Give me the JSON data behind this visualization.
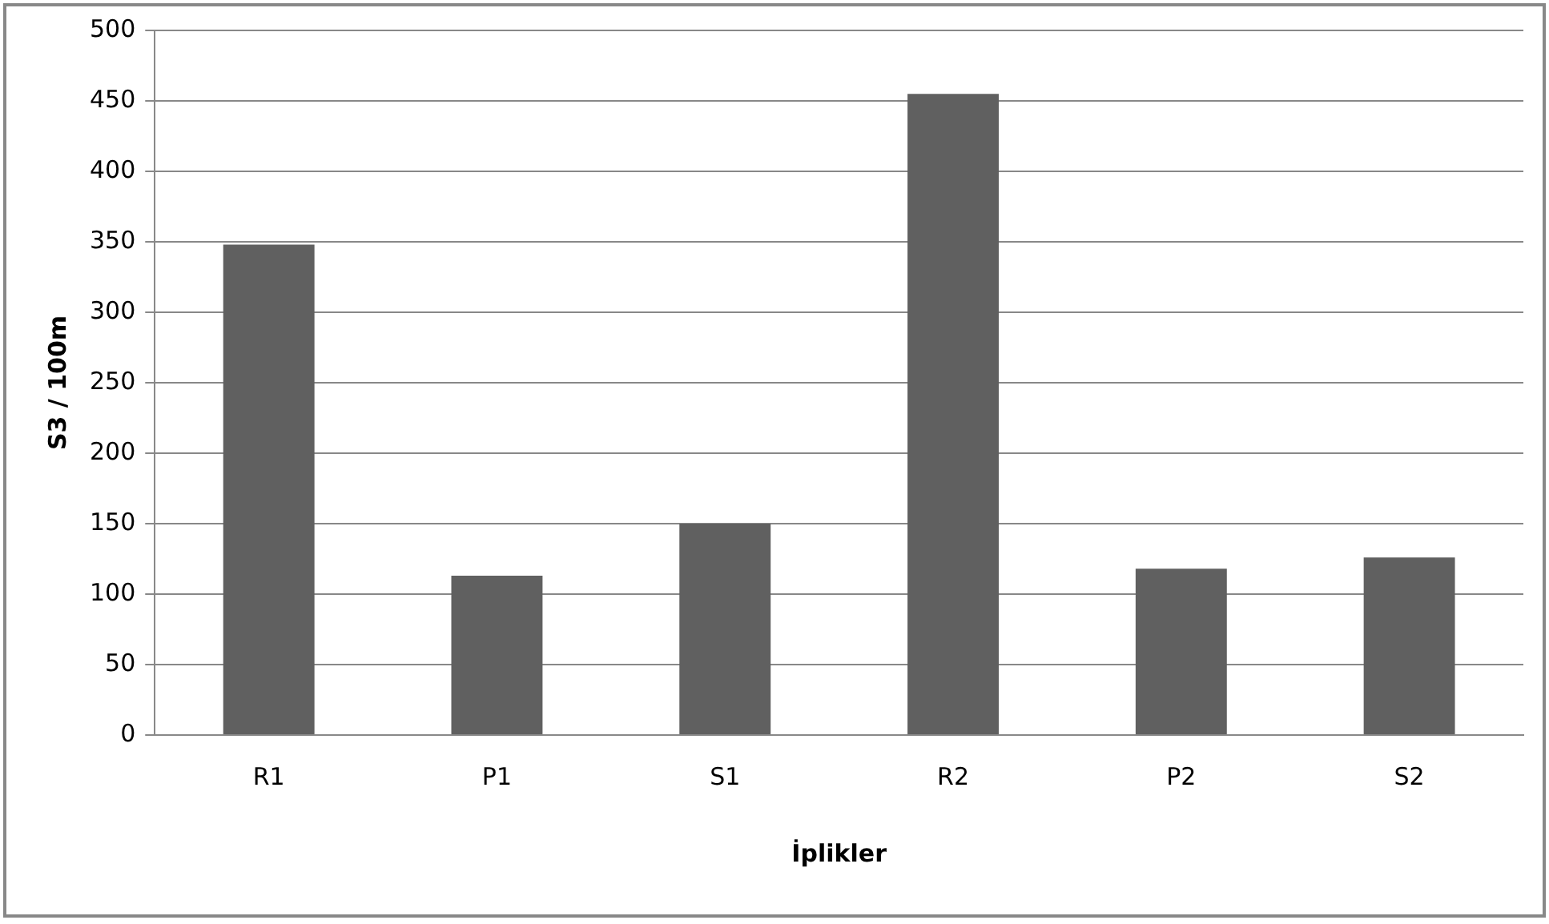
{
  "chart_data": {
    "type": "bar",
    "categories": [
      "R1",
      "P1",
      "S1",
      "R2",
      "P2",
      "S2"
    ],
    "values": [
      348,
      113,
      150,
      455,
      118,
      126
    ],
    "color": "#606060",
    "xlabel": "İplikler",
    "ylabel": "S3 / 100m",
    "ylim": [
      0,
      500
    ],
    "yticks": [
      0,
      50,
      100,
      150,
      200,
      250,
      300,
      350,
      400,
      450,
      500
    ],
    "grid": "y",
    "legend": false
  }
}
